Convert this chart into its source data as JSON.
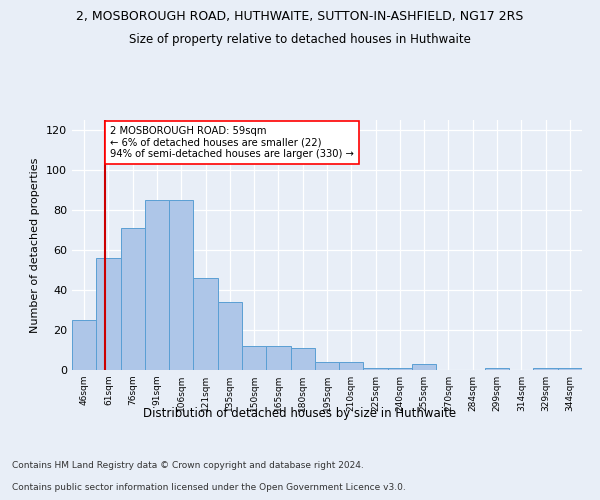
{
  "title1": "2, MOSBOROUGH ROAD, HUTHWAITE, SUTTON-IN-ASHFIELD, NG17 2RS",
  "title2": "Size of property relative to detached houses in Huthwaite",
  "xlabel": "Distribution of detached houses by size in Huthwaite",
  "ylabel": "Number of detached properties",
  "categories": [
    "46sqm",
    "61sqm",
    "76sqm",
    "91sqm",
    "106sqm",
    "121sqm",
    "135sqm",
    "150sqm",
    "165sqm",
    "180sqm",
    "195sqm",
    "210sqm",
    "225sqm",
    "240sqm",
    "255sqm",
    "270sqm",
    "284sqm",
    "299sqm",
    "314sqm",
    "329sqm",
    "344sqm"
  ],
  "values": [
    25,
    56,
    71,
    85,
    85,
    46,
    34,
    12,
    12,
    11,
    4,
    4,
    1,
    1,
    3,
    0,
    0,
    1,
    0,
    1,
    1
  ],
  "bar_color": "#aec6e8",
  "bar_edge_color": "#5a9fd4",
  "annotation_box_text": "2 MOSBOROUGH ROAD: 59sqm\n← 6% of detached houses are smaller (22)\n94% of semi-detached houses are larger (330) →",
  "ylim": [
    0,
    125
  ],
  "yticks": [
    0,
    20,
    40,
    60,
    80,
    100,
    120
  ],
  "vline_color": "#cc0000",
  "footer1": "Contains HM Land Registry data © Crown copyright and database right 2024.",
  "footer2": "Contains public sector information licensed under the Open Government Licence v3.0.",
  "background_color": "#e8eef7",
  "plot_bg_color": "#e8eef7"
}
